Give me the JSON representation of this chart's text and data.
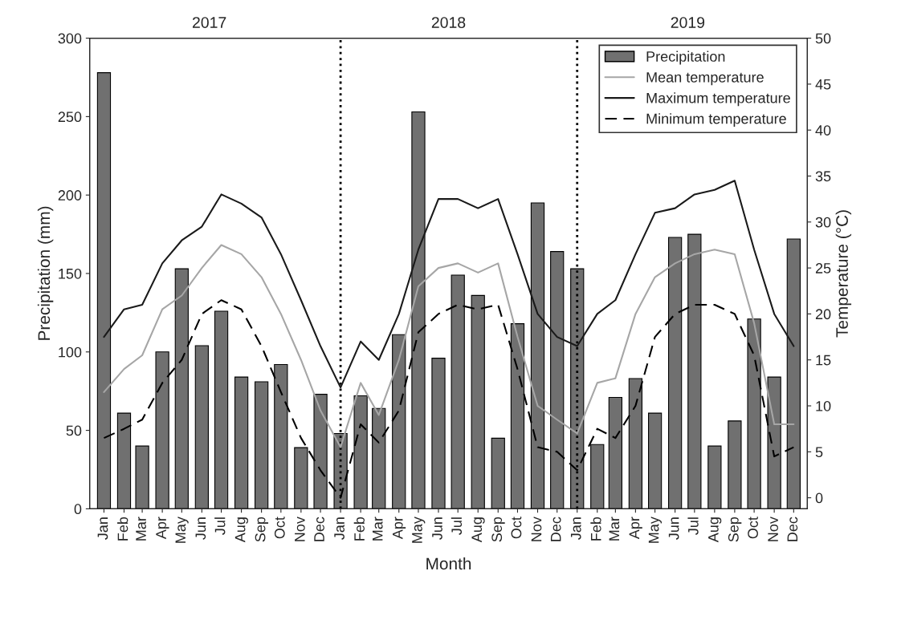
{
  "chart_data": {
    "type": "bar",
    "xlabel": "Month",
    "ylabel": "Precipitation (mm)",
    "y2label": "Temperature (°C)",
    "x": [
      "2017-01",
      "2017-02",
      "2017-03",
      "2017-04",
      "2017-05",
      "2017-06",
      "2017-07",
      "2017-08",
      "2017-09",
      "2017-10",
      "2017-11",
      "2017-12",
      "2018-01",
      "2018-02",
      "2018-03",
      "2018-04",
      "2018-05",
      "2018-06",
      "2018-07",
      "2018-08",
      "2018-09",
      "2018-10",
      "2018-11",
      "2018-12",
      "2019-01",
      "2019-02",
      "2019-03",
      "2019-04",
      "2019-05",
      "2019-06",
      "2019-07",
      "2019-08",
      "2019-09",
      "2019-10",
      "2019-11",
      "2019-12"
    ],
    "xlim": [
      "2016-12-10",
      "2019-12-22"
    ],
    "xticks": [
      {
        "value": "2017-01",
        "label": "Jan"
      },
      {
        "value": "2017-02",
        "label": "Feb"
      },
      {
        "value": "2017-03",
        "label": "Mar"
      },
      {
        "value": "2017-04",
        "label": "Apr"
      },
      {
        "value": "2017-05",
        "label": "May"
      },
      {
        "value": "2017-06",
        "label": "Jun"
      },
      {
        "value": "2017-07",
        "label": "Jul"
      },
      {
        "value": "2017-08",
        "label": "Aug"
      },
      {
        "value": "2017-09",
        "label": "Sep"
      },
      {
        "value": "2017-10",
        "label": "Oct"
      },
      {
        "value": "2017-11",
        "label": "Nov"
      },
      {
        "value": "2017-12",
        "label": "Dec"
      },
      {
        "value": "2018-01",
        "label": "Jan"
      },
      {
        "value": "2018-02",
        "label": "Feb"
      },
      {
        "value": "2018-03",
        "label": "Mar"
      },
      {
        "value": "2018-04",
        "label": "Apr"
      },
      {
        "value": "2018-05",
        "label": "May"
      },
      {
        "value": "2018-06",
        "label": "Jun"
      },
      {
        "value": "2018-07",
        "label": "Jul"
      },
      {
        "value": "2018-08",
        "label": "Aug"
      },
      {
        "value": "2018-09",
        "label": "Sep"
      },
      {
        "value": "2018-10",
        "label": "Oct"
      },
      {
        "value": "2018-11",
        "label": "Nov"
      },
      {
        "value": "2018-12",
        "label": "Dec"
      },
      {
        "value": "2019-01",
        "label": "Jan"
      },
      {
        "value": "2019-02",
        "label": "Feb"
      },
      {
        "value": "2019-03",
        "label": "Mar"
      },
      {
        "value": "2019-04",
        "label": "Apr"
      },
      {
        "value": "2019-05",
        "label": "May"
      },
      {
        "value": "2019-06",
        "label": "Jun"
      },
      {
        "value": "2019-07",
        "label": "Jul"
      },
      {
        "value": "2019-08",
        "label": "Aug"
      },
      {
        "value": "2019-09",
        "label": "Sep"
      },
      {
        "value": "2019-10",
        "label": "Oct"
      },
      {
        "value": "2019-11",
        "label": "Nov"
      },
      {
        "value": "2019-12",
        "label": "Dec"
      }
    ],
    "series": [
      {
        "name": "Precipitation",
        "color": "#707070",
        "values": [
          278,
          61,
          40,
          100,
          153,
          104,
          126,
          84,
          81,
          92,
          39,
          73,
          48,
          72,
          64,
          111,
          253,
          96,
          149,
          136,
          45,
          118,
          195,
          164,
          153,
          41,
          71,
          83,
          61,
          173,
          175,
          40,
          56,
          121,
          84,
          172
        ]
      },
      {
        "name": "Mean temperature",
        "type": "line",
        "axis": "y2",
        "color": "#a6a6a6",
        "line_style": "solid",
        "values": [
          11.5,
          14,
          15.5,
          20.5,
          22,
          25,
          27.5,
          26.5,
          24,
          20,
          15,
          9.5,
          5.5,
          12.5,
          9,
          15,
          23,
          25,
          25.5,
          24.5,
          25.5,
          17.5,
          10,
          8.5,
          7,
          12.5,
          13,
          20,
          24,
          25.5,
          26.5,
          27,
          26.5,
          19,
          8,
          8
        ]
      },
      {
        "name": "Maximum temperature",
        "type": "line",
        "axis": "y2",
        "color": "#1a1a1a",
        "line_style": "solid",
        "values": [
          17.5,
          20.5,
          21,
          25.5,
          28,
          29.5,
          33,
          32,
          30.5,
          26.5,
          21.5,
          16.5,
          12,
          17,
          15,
          20,
          27,
          32.5,
          32.5,
          31.5,
          32.5,
          26.5,
          20,
          17.5,
          16.5,
          20,
          21.5,
          26.5,
          31,
          31.5,
          33,
          33.5,
          34.5,
          27,
          20,
          16.5
        ]
      },
      {
        "name": "Minimum temperature",
        "type": "line",
        "axis": "y2",
        "color": "#000000",
        "line_style": "dashed",
        "values": [
          6.5,
          7.5,
          8.5,
          12.5,
          15,
          20,
          21.5,
          20.5,
          16.5,
          11.5,
          6.5,
          3,
          0,
          8,
          6,
          9.5,
          18,
          20,
          21,
          20.5,
          21,
          14,
          5.5,
          5,
          3,
          7.5,
          6.5,
          10,
          17.5,
          20,
          21,
          21,
          20,
          15.5,
          4.5,
          5.5
        ]
      }
    ],
    "ylim": [
      0,
      300
    ],
    "yticks": [
      0,
      50,
      100,
      150,
      200,
      250,
      300
    ],
    "y2lim": [
      -1.2,
      50
    ],
    "y2ticks": [
      0,
      5,
      10,
      15,
      20,
      25,
      30,
      35,
      40,
      45,
      50
    ],
    "ref_lines": [
      {
        "axis": "x",
        "value": "2018-01",
        "line_style": "dotted",
        "color": "#000000"
      },
      {
        "axis": "x",
        "value": "2019-01",
        "line_style": "dotted",
        "color": "#000000"
      }
    ],
    "annotations": [
      "2017",
      "2018",
      "2019"
    ],
    "legend": "top right",
    "grid": false
  }
}
